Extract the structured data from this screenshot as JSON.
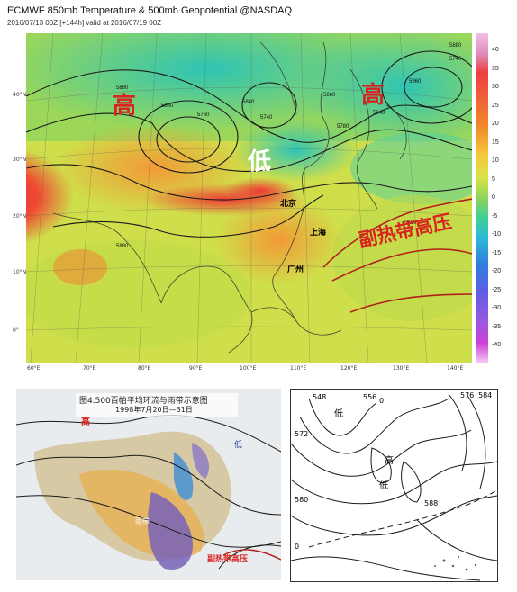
{
  "header": {
    "title": "ECMWF 850mb Temperature & 500mb Geopotential @NASDAQ",
    "subtitle": "2016/07/13 00Z [+144h] valid at 2016/07/19 00Z"
  },
  "colorbar": {
    "ticks": [
      "40",
      "35",
      "30",
      "25",
      "20",
      "15",
      "10",
      "5",
      "0",
      "-5",
      "-10",
      "-15",
      "-20",
      "-25",
      "-30",
      "-35",
      "-40"
    ],
    "colors": [
      "#f1c0e6",
      "#ee3e3e",
      "#f0862e",
      "#f6c93a",
      "#d8e24a",
      "#3fcf97",
      "#2dbad6",
      "#2f7fe0",
      "#9b57e1",
      "#cc3fd6"
    ]
  },
  "main_map": {
    "lat_labels": [
      "40°N",
      "30°N",
      "20°N",
      "10°N",
      "0°"
    ],
    "lon_labels": [
      "60°E",
      "70°E",
      "80°E",
      "90°E",
      "100°E",
      "110°E",
      "120°E",
      "130°E",
      "140°E"
    ],
    "contour_labels": [
      "5880",
      "5760",
      "5840",
      "5740",
      "5880",
      "5860",
      "5960",
      "5740",
      "5840",
      "5880",
      "5780",
      "5860",
      "5880"
    ],
    "annotations": {
      "high_west": "高",
      "high_east": "高",
      "low": "低",
      "subtropical_high": "副热带高压",
      "beijing": "北京",
      "shanghai": "上海",
      "guangzhou": "广州"
    }
  },
  "lower_left": {
    "caption_title": "图4.500百帕平均环流与雨带示意图",
    "caption_date": "1998年7月20日—31日",
    "high_label": "高",
    "low_label": "低",
    "mountain_label": "雨带",
    "subtropical_high": "副热带高压"
  },
  "lower_right": {
    "contour_labels": [
      "548",
      "556",
      "576",
      "584",
      "572",
      "580",
      "588",
      "0",
      "0"
    ],
    "low_label_1": "低",
    "low_label_2": "低",
    "high_label": "高"
  },
  "colors": {
    "high_red": "#d9231f",
    "low_white": "#ffffff",
    "contour": "#1a1a1a",
    "subtropical_line": "#b0201c"
  }
}
